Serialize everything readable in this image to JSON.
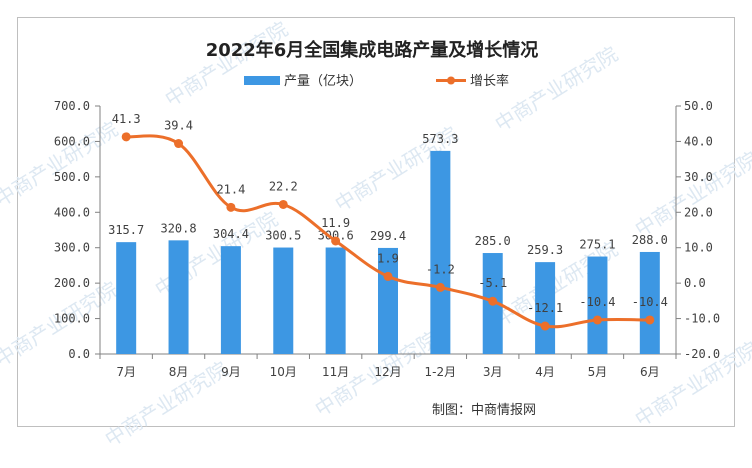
{
  "chart_data": {
    "type": "bar+line",
    "title": "2022年6月全国集成电路产量及增长情况",
    "categories": [
      "7月",
      "8月",
      "9月",
      "10月",
      "11月",
      "12月",
      "1-2月",
      "3月",
      "4月",
      "5月",
      "6月"
    ],
    "series": [
      {
        "name": "产量（亿块）",
        "type": "bar",
        "axis": "left",
        "color": "#3d97e3",
        "values": [
          315.7,
          320.8,
          304.4,
          300.5,
          300.6,
          299.4,
          573.3,
          285.0,
          259.3,
          275.1,
          288.0
        ],
        "labels": [
          "315.7",
          "320.8",
          "304.4",
          "300.5",
          "300.6",
          "299.4",
          "573.3",
          "285.0",
          "259.3",
          "275.1",
          "288.0"
        ]
      },
      {
        "name": "增长率",
        "type": "line",
        "axis": "right",
        "color": "#ec6f2a",
        "values": [
          41.3,
          39.4,
          21.4,
          22.2,
          11.9,
          1.9,
          -1.2,
          -5.1,
          -12.1,
          -10.4,
          -10.4
        ],
        "labels": [
          "41.3",
          "39.4",
          "21.4",
          "22.2",
          "11.9",
          "1.9",
          "-1.2",
          "-5.1",
          "-12.1",
          "-10.4",
          "-10.4"
        ]
      }
    ],
    "left_axis": {
      "min": 0,
      "max": 700,
      "ticks": [
        "0.0",
        "100.0",
        "200.0",
        "300.0",
        "400.0",
        "500.0",
        "600.0",
        "700.0"
      ]
    },
    "right_axis": {
      "min": -20,
      "max": 50,
      "ticks": [
        "-20.0",
        "-10.0",
        "0.0",
        "10.0",
        "20.0",
        "30.0",
        "40.0",
        "50.0"
      ]
    },
    "grid": false,
    "legend_position": "top",
    "source": "制图：中商情报网"
  },
  "watermark": "中商产业研究院"
}
